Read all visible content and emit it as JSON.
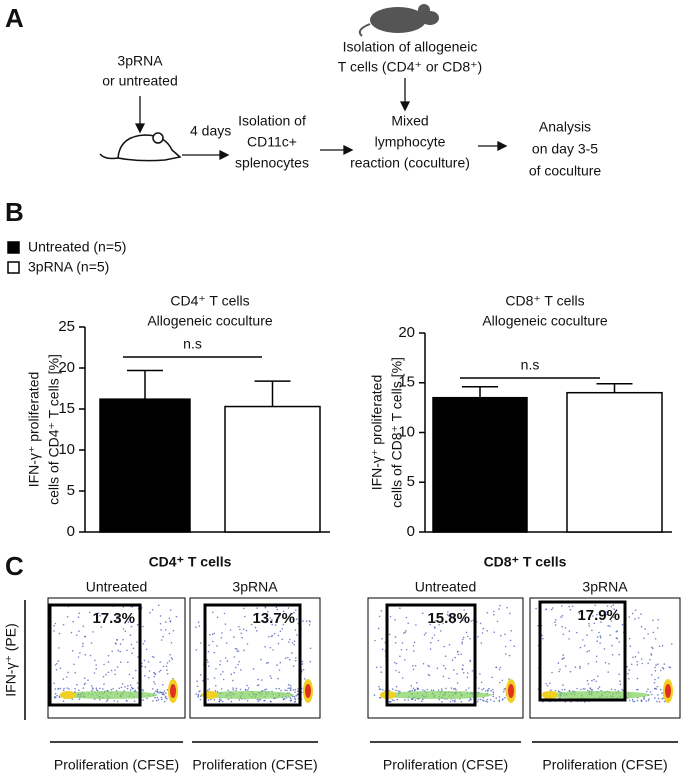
{
  "panel_a": {
    "letter": "A",
    "treatment": [
      "3pRNA",
      "or untreated"
    ],
    "interval": "4 days",
    "isolation_dc": [
      "Isolation of",
      "CD11c+",
      "splenocytes"
    ],
    "isolation_t": [
      "Isolation of allogeneic",
      "T cells (CD4⁺ or CD8⁺)"
    ],
    "mlr": [
      "Mixed",
      "lymphocyte",
      "reaction (coculture)"
    ],
    "analysis": [
      "Analysis",
      "on day 3-5",
      "of coculture"
    ]
  },
  "panel_b": {
    "letter": "B"
  },
  "chart_data": [
    {
      "type": "bar",
      "title": "CD4⁺ T cells",
      "subtitle": "Allogeneic coculture",
      "ylabel": [
        "IFN-γ⁺ proliferated",
        "cells of CD4⁺ T cells [%]"
      ],
      "categories": [
        null
      ],
      "series": [
        {
          "name": "Untreated (n=5)",
          "color": "#000000",
          "values": [
            16.2
          ],
          "errors": [
            3.5
          ]
        },
        {
          "name": "3pRNA (n=5)",
          "color": "#ffffff",
          "values": [
            15.3
          ],
          "errors": [
            3.1
          ]
        }
      ],
      "ylim": [
        0,
        25
      ],
      "yticks": [
        0,
        5,
        10,
        15,
        20,
        25
      ],
      "annotation": "n.s"
    },
    {
      "type": "bar",
      "title": "CD8⁺ T cells",
      "subtitle": "Allogeneic coculture",
      "ylabel": [
        "IFN-γ⁺ proliferated",
        "cells of CD8⁺ T cells [%]"
      ],
      "categories": [
        null
      ],
      "series": [
        {
          "color": "#000000",
          "values": [
            13.5
          ],
          "errors": [
            1.1
          ]
        },
        {
          "color": "#ffffff",
          "values": [
            14.0
          ],
          "errors": [
            0.9
          ]
        }
      ],
      "ylim": [
        0,
        20
      ],
      "yticks": [
        0,
        5,
        10,
        15,
        20
      ],
      "annotation": "n.s"
    }
  ],
  "panel_c": {
    "letter": "C",
    "ylabel": "IFN-γ⁺ (PE)",
    "xlabel": "Proliferation (CFSE)",
    "groups": [
      {
        "title": "CD4⁺ T cells",
        "plots": [
          {
            "title": "Untreated",
            "gate": "17.3%"
          },
          {
            "title": "3pRNA",
            "gate": "13.7%"
          }
        ]
      },
      {
        "title": "CD8⁺ T cells",
        "plots": [
          {
            "title": "Untreated",
            "gate": "15.8%"
          },
          {
            "title": "3pRNA",
            "gate": "17.9%"
          }
        ]
      }
    ]
  }
}
